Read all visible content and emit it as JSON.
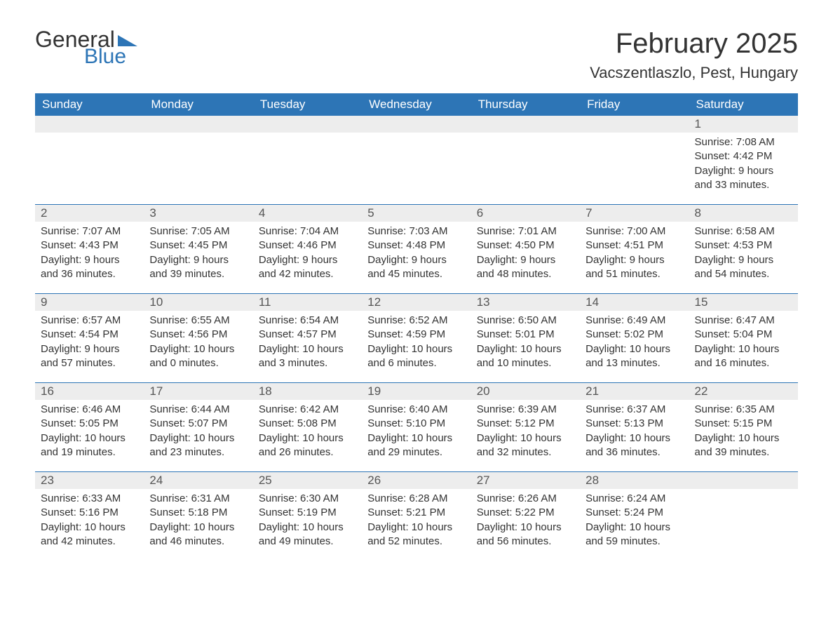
{
  "logo": {
    "word1": "General",
    "word2": "Blue"
  },
  "title": "February 2025",
  "location": "Vacszentlaszlo, Pest, Hungary",
  "colors": {
    "brand_blue": "#2d75b6",
    "header_text": "#ffffff",
    "daynum_bg": "#ededed",
    "body_text": "#333333",
    "muted_text": "#555555",
    "page_bg": "#ffffff"
  },
  "typography": {
    "title_fontsize": 40,
    "location_fontsize": 22,
    "dow_fontsize": 17,
    "daynum_fontsize": 17,
    "body_fontsize": 15,
    "font_family": "Segoe UI"
  },
  "layout": {
    "columns": 7,
    "rows": 5,
    "cell_min_height": 126
  },
  "days_of_week": [
    "Sunday",
    "Monday",
    "Tuesday",
    "Wednesday",
    "Thursday",
    "Friday",
    "Saturday"
  ],
  "weeks": [
    [
      {
        "day": null
      },
      {
        "day": null
      },
      {
        "day": null
      },
      {
        "day": null
      },
      {
        "day": null
      },
      {
        "day": null
      },
      {
        "day": 1,
        "sunrise": "Sunrise: 7:08 AM",
        "sunset": "Sunset: 4:42 PM",
        "daylight1": "Daylight: 9 hours",
        "daylight2": "and 33 minutes."
      }
    ],
    [
      {
        "day": 2,
        "sunrise": "Sunrise: 7:07 AM",
        "sunset": "Sunset: 4:43 PM",
        "daylight1": "Daylight: 9 hours",
        "daylight2": "and 36 minutes."
      },
      {
        "day": 3,
        "sunrise": "Sunrise: 7:05 AM",
        "sunset": "Sunset: 4:45 PM",
        "daylight1": "Daylight: 9 hours",
        "daylight2": "and 39 minutes."
      },
      {
        "day": 4,
        "sunrise": "Sunrise: 7:04 AM",
        "sunset": "Sunset: 4:46 PM",
        "daylight1": "Daylight: 9 hours",
        "daylight2": "and 42 minutes."
      },
      {
        "day": 5,
        "sunrise": "Sunrise: 7:03 AM",
        "sunset": "Sunset: 4:48 PM",
        "daylight1": "Daylight: 9 hours",
        "daylight2": "and 45 minutes."
      },
      {
        "day": 6,
        "sunrise": "Sunrise: 7:01 AM",
        "sunset": "Sunset: 4:50 PM",
        "daylight1": "Daylight: 9 hours",
        "daylight2": "and 48 minutes."
      },
      {
        "day": 7,
        "sunrise": "Sunrise: 7:00 AM",
        "sunset": "Sunset: 4:51 PM",
        "daylight1": "Daylight: 9 hours",
        "daylight2": "and 51 minutes."
      },
      {
        "day": 8,
        "sunrise": "Sunrise: 6:58 AM",
        "sunset": "Sunset: 4:53 PM",
        "daylight1": "Daylight: 9 hours",
        "daylight2": "and 54 minutes."
      }
    ],
    [
      {
        "day": 9,
        "sunrise": "Sunrise: 6:57 AM",
        "sunset": "Sunset: 4:54 PM",
        "daylight1": "Daylight: 9 hours",
        "daylight2": "and 57 minutes."
      },
      {
        "day": 10,
        "sunrise": "Sunrise: 6:55 AM",
        "sunset": "Sunset: 4:56 PM",
        "daylight1": "Daylight: 10 hours",
        "daylight2": "and 0 minutes."
      },
      {
        "day": 11,
        "sunrise": "Sunrise: 6:54 AM",
        "sunset": "Sunset: 4:57 PM",
        "daylight1": "Daylight: 10 hours",
        "daylight2": "and 3 minutes."
      },
      {
        "day": 12,
        "sunrise": "Sunrise: 6:52 AM",
        "sunset": "Sunset: 4:59 PM",
        "daylight1": "Daylight: 10 hours",
        "daylight2": "and 6 minutes."
      },
      {
        "day": 13,
        "sunrise": "Sunrise: 6:50 AM",
        "sunset": "Sunset: 5:01 PM",
        "daylight1": "Daylight: 10 hours",
        "daylight2": "and 10 minutes."
      },
      {
        "day": 14,
        "sunrise": "Sunrise: 6:49 AM",
        "sunset": "Sunset: 5:02 PM",
        "daylight1": "Daylight: 10 hours",
        "daylight2": "and 13 minutes."
      },
      {
        "day": 15,
        "sunrise": "Sunrise: 6:47 AM",
        "sunset": "Sunset: 5:04 PM",
        "daylight1": "Daylight: 10 hours",
        "daylight2": "and 16 minutes."
      }
    ],
    [
      {
        "day": 16,
        "sunrise": "Sunrise: 6:46 AM",
        "sunset": "Sunset: 5:05 PM",
        "daylight1": "Daylight: 10 hours",
        "daylight2": "and 19 minutes."
      },
      {
        "day": 17,
        "sunrise": "Sunrise: 6:44 AM",
        "sunset": "Sunset: 5:07 PM",
        "daylight1": "Daylight: 10 hours",
        "daylight2": "and 23 minutes."
      },
      {
        "day": 18,
        "sunrise": "Sunrise: 6:42 AM",
        "sunset": "Sunset: 5:08 PM",
        "daylight1": "Daylight: 10 hours",
        "daylight2": "and 26 minutes."
      },
      {
        "day": 19,
        "sunrise": "Sunrise: 6:40 AM",
        "sunset": "Sunset: 5:10 PM",
        "daylight1": "Daylight: 10 hours",
        "daylight2": "and 29 minutes."
      },
      {
        "day": 20,
        "sunrise": "Sunrise: 6:39 AM",
        "sunset": "Sunset: 5:12 PM",
        "daylight1": "Daylight: 10 hours",
        "daylight2": "and 32 minutes."
      },
      {
        "day": 21,
        "sunrise": "Sunrise: 6:37 AM",
        "sunset": "Sunset: 5:13 PM",
        "daylight1": "Daylight: 10 hours",
        "daylight2": "and 36 minutes."
      },
      {
        "day": 22,
        "sunrise": "Sunrise: 6:35 AM",
        "sunset": "Sunset: 5:15 PM",
        "daylight1": "Daylight: 10 hours",
        "daylight2": "and 39 minutes."
      }
    ],
    [
      {
        "day": 23,
        "sunrise": "Sunrise: 6:33 AM",
        "sunset": "Sunset: 5:16 PM",
        "daylight1": "Daylight: 10 hours",
        "daylight2": "and 42 minutes."
      },
      {
        "day": 24,
        "sunrise": "Sunrise: 6:31 AM",
        "sunset": "Sunset: 5:18 PM",
        "daylight1": "Daylight: 10 hours",
        "daylight2": "and 46 minutes."
      },
      {
        "day": 25,
        "sunrise": "Sunrise: 6:30 AM",
        "sunset": "Sunset: 5:19 PM",
        "daylight1": "Daylight: 10 hours",
        "daylight2": "and 49 minutes."
      },
      {
        "day": 26,
        "sunrise": "Sunrise: 6:28 AM",
        "sunset": "Sunset: 5:21 PM",
        "daylight1": "Daylight: 10 hours",
        "daylight2": "and 52 minutes."
      },
      {
        "day": 27,
        "sunrise": "Sunrise: 6:26 AM",
        "sunset": "Sunset: 5:22 PM",
        "daylight1": "Daylight: 10 hours",
        "daylight2": "and 56 minutes."
      },
      {
        "day": 28,
        "sunrise": "Sunrise: 6:24 AM",
        "sunset": "Sunset: 5:24 PM",
        "daylight1": "Daylight: 10 hours",
        "daylight2": "and 59 minutes."
      },
      {
        "day": null
      }
    ]
  ]
}
